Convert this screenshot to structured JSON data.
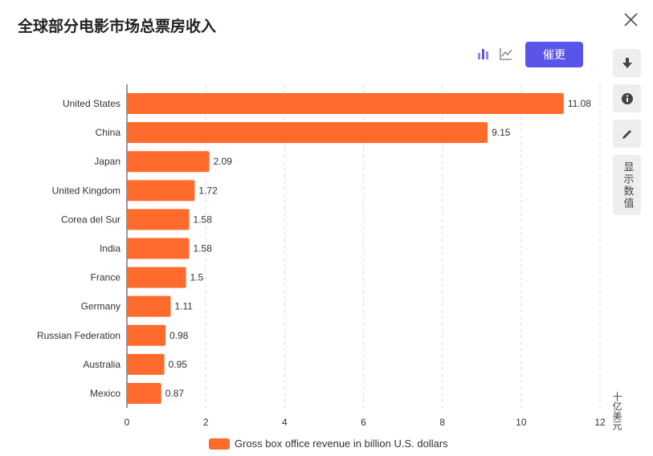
{
  "title": "全球部分电影市场总票房收入",
  "toolbar": {
    "primary_label": "催更",
    "side_toggle_label": "显示数值"
  },
  "icons": {
    "close": "close-icon",
    "bar_chart": "bar-chart-icon",
    "line_chart": "line-chart-icon",
    "download": "download-icon",
    "info": "info-icon",
    "edit": "edit-icon"
  },
  "colors": {
    "bar": "#ff6b2c",
    "accent": "#5b54e8",
    "grid": "#dddddd"
  },
  "chart_data": {
    "type": "bar",
    "orientation": "horizontal",
    "categories": [
      "United States",
      "China",
      "Japan",
      "United Kingdom",
      "Corea del Sur",
      "India",
      "France",
      "Germany",
      "Russian Federation",
      "Australia",
      "Mexico"
    ],
    "values": [
      11.08,
      9.15,
      2.09,
      1.72,
      1.58,
      1.58,
      1.5,
      1.11,
      0.98,
      0.95,
      0.87
    ],
    "value_labels": [
      "11.08",
      "9.15",
      "2.09",
      "1.72",
      "1.58",
      "1.58",
      "1.5",
      "1.11",
      "0.98",
      "0.95",
      "0.87"
    ],
    "xlim": [
      0,
      12
    ],
    "xticks": [
      "0",
      "2",
      "4",
      "6",
      "8",
      "10",
      "12"
    ],
    "xunit": "十亿美元",
    "legend": "Gross box office revenue in billion U.S. dollars",
    "legend_position": "bottom",
    "grid": true
  }
}
